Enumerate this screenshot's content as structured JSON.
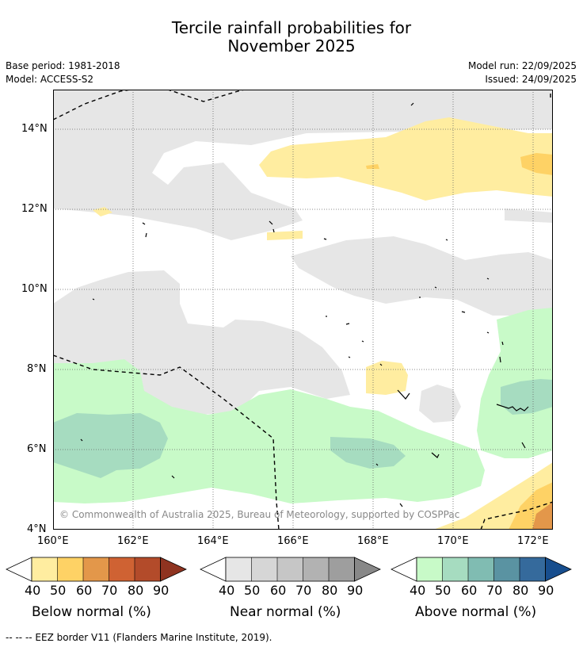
{
  "title_line1": "Tercile rainfall probabilities for",
  "title_line2": "November 2025",
  "meta": {
    "base_period": "Base period: 1981-2018",
    "model": "Model: ACCESS-S2",
    "model_run": "Model run: 22/09/2025",
    "issued": "Issued: 24/09/2025"
  },
  "map": {
    "lon_range": [
      160,
      172.5
    ],
    "lat_range": [
      4,
      15
    ],
    "lat_ticks": [
      "14°N",
      "12°N",
      "10°N",
      "8°N",
      "6°N",
      "4°N"
    ],
    "lon_ticks": [
      "160°E",
      "162°E",
      "164°E",
      "166°E",
      "168°E",
      "170°E",
      "172°E"
    ],
    "copyright": "© Commonwealth of Australia 2025, Bureau of Meteorology, supported by COSPPac"
  },
  "colorbars": [
    {
      "title": "Below normal (%)",
      "ticks": [
        "40",
        "50",
        "60",
        "70",
        "80",
        "90"
      ],
      "colors": [
        "#ffeda0",
        "#fed265",
        "#e3974a",
        "#cf6233",
        "#b34b2a",
        "#8f3320"
      ]
    },
    {
      "title": "Near normal (%)",
      "ticks": [
        "40",
        "50",
        "60",
        "70",
        "80",
        "90"
      ],
      "colors": [
        "#e6e6e6",
        "#d6d6d6",
        "#c6c6c6",
        "#b2b2b2",
        "#9e9e9e",
        "#888888"
      ]
    },
    {
      "title": "Above normal (%)",
      "ticks": [
        "40",
        "50",
        "60",
        "70",
        "80",
        "90"
      ],
      "colors": [
        "#c8fac8",
        "#a6dcc0",
        "#80bcb2",
        "#5a93a2",
        "#356a9c",
        "#174e8e"
      ]
    }
  ],
  "footnote": "--  --  -- EEZ border V11 (Flanders Marine Institute, 2019)."
}
